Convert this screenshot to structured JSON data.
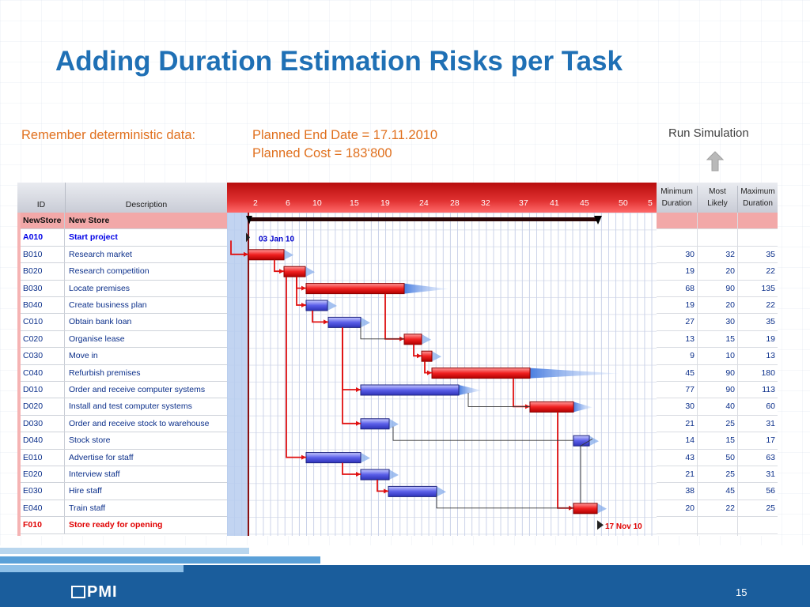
{
  "slide": {
    "title": "Adding Duration Estimation Risks per Task",
    "remember_label": "Remember deterministic data:",
    "planned_end": "Planned End Date = 17.11.2010",
    "planned_cost": "Planned Cost = 183‘800",
    "run_simulation": "Run Simulation",
    "page_number": "15",
    "logo_text": "PMI",
    "colors": {
      "title": "#1f70b5",
      "accent": "#e0701e",
      "footer": "#1a5d9c"
    }
  },
  "table": {
    "headers": {
      "id": "ID",
      "description": "Description"
    },
    "right_headers": {
      "min_1": "Minimum",
      "min_2": "Duration",
      "likely_1": "Most",
      "likely_2": "Likely",
      "max_1": "Maximum",
      "max_2": "Duration"
    },
    "timeline_ticks": [
      "2",
      "6",
      "10",
      "15",
      "19",
      "24",
      "28",
      "32",
      "37",
      "41",
      "45",
      "50",
      "5"
    ],
    "start_label": "03 Jan 10",
    "end_label": "17 Nov 10",
    "rows": [
      {
        "id": "NewStore",
        "desc": "New Store",
        "kind": "proj",
        "min": "",
        "likely": "",
        "max": ""
      },
      {
        "id": "A010",
        "desc": "Start project",
        "kind": "milestone",
        "min": "",
        "likely": "",
        "max": ""
      },
      {
        "id": "B010",
        "desc": "Research market",
        "kind": "task",
        "min": "30",
        "likely": "32",
        "max": "35"
      },
      {
        "id": "B020",
        "desc": "Research competition",
        "kind": "task",
        "min": "19",
        "likely": "20",
        "max": "22"
      },
      {
        "id": "B030",
        "desc": "Locate premises",
        "kind": "task",
        "min": "68",
        "likely": "90",
        "max": "135"
      },
      {
        "id": "B040",
        "desc": "Create business plan",
        "kind": "task",
        "min": "19",
        "likely": "20",
        "max": "22"
      },
      {
        "id": "C010",
        "desc": "Obtain bank loan",
        "kind": "task",
        "min": "27",
        "likely": "30",
        "max": "35"
      },
      {
        "id": "C020",
        "desc": "Organise lease",
        "kind": "task",
        "min": "13",
        "likely": "15",
        "max": "19"
      },
      {
        "id": "C030",
        "desc": "Move in",
        "kind": "task",
        "min": "9",
        "likely": "10",
        "max": "13"
      },
      {
        "id": "C040",
        "desc": "Refurbish premises",
        "kind": "task",
        "min": "45",
        "likely": "90",
        "max": "180"
      },
      {
        "id": "D010",
        "desc": "Order and receive computer systems",
        "kind": "task",
        "min": "77",
        "likely": "90",
        "max": "113"
      },
      {
        "id": "D020",
        "desc": "Install and test computer systems",
        "kind": "task",
        "min": "30",
        "likely": "40",
        "max": "60"
      },
      {
        "id": "D030",
        "desc": "Order and receive stock to warehouse",
        "kind": "task",
        "min": "21",
        "likely": "25",
        "max": "31"
      },
      {
        "id": "D040",
        "desc": "Stock store",
        "kind": "task",
        "min": "14",
        "likely": "15",
        "max": "17"
      },
      {
        "id": "E010",
        "desc": "Advertise for staff",
        "kind": "task",
        "min": "43",
        "likely": "50",
        "max": "63"
      },
      {
        "id": "E020",
        "desc": "Interview staff",
        "kind": "task",
        "min": "21",
        "likely": "25",
        "max": "31"
      },
      {
        "id": "E030",
        "desc": "Hire staff",
        "kind": "task",
        "min": "38",
        "likely": "45",
        "max": "56"
      },
      {
        "id": "E040",
        "desc": "Train staff",
        "kind": "task",
        "min": "20",
        "likely": "22",
        "max": "25"
      },
      {
        "id": "F010",
        "desc": "Store ready for opening",
        "kind": "final",
        "min": "",
        "likely": "",
        "max": ""
      }
    ]
  }
}
